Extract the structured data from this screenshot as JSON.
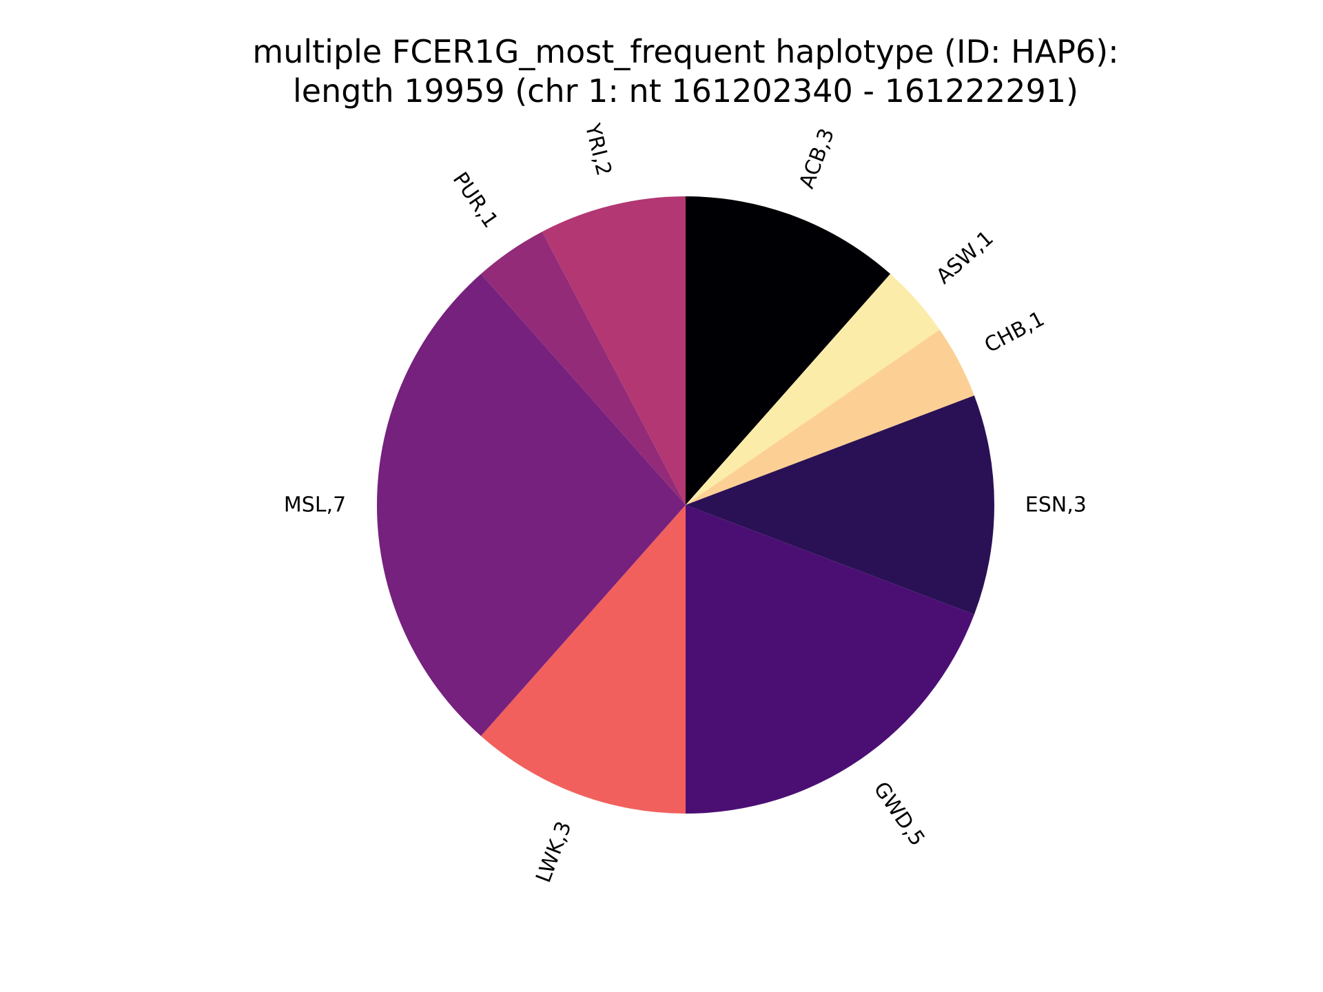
{
  "chart_data": {
    "type": "pie",
    "title_line1": "multiple FCER1G_most_frequent haplotype (ID: HAP6):",
    "title_line2": "length 19959 (chr 1: nt 161202340 - 161222291)",
    "start_angle_deg": 90,
    "direction": "clockwise",
    "slices": [
      {
        "label": "ACB,3",
        "category": "ACB",
        "value": 3,
        "color": "#000004"
      },
      {
        "label": "ASW,1",
        "category": "ASW",
        "value": 1,
        "color": "#fcecaa"
      },
      {
        "label": "CHB,1",
        "category": "CHB",
        "value": 1,
        "color": "#fcd094"
      },
      {
        "label": "ESN,3",
        "category": "ESN",
        "value": 3,
        "color": "#2a1155"
      },
      {
        "label": "GWD,5",
        "category": "GWD",
        "value": 5,
        "color": "#4b0f74"
      },
      {
        "label": "LWK,3",
        "category": "LWK",
        "value": 3,
        "color": "#f1605d"
      },
      {
        "label": "MSL,7",
        "category": "MSL",
        "value": 7,
        "color": "#76217d"
      },
      {
        "label": "PUR,1",
        "category": "PUR",
        "value": 1,
        "color": "#932b79"
      },
      {
        "label": "YRI,2",
        "category": "YRI",
        "value": 2,
        "color": "#b23773"
      }
    ]
  }
}
